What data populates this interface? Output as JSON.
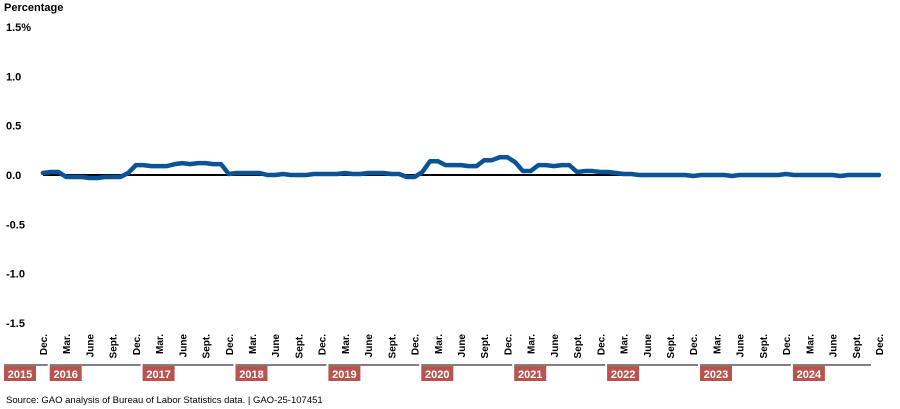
{
  "chart_data": {
    "type": "line",
    "ylabel": "Percentage",
    "ylim": [
      -1.5,
      1.5
    ],
    "y_ticks": [
      "1.5%",
      "1.0",
      "0.5",
      "0.0",
      "-0.5",
      "-1.0",
      "-1.5"
    ],
    "month_labels": [
      "Dec.",
      "Mar.",
      "June",
      "Sept.",
      "Dec.",
      "Mar.",
      "June",
      "Sept.",
      "Dec.",
      "Mar.",
      "June",
      "Sept.",
      "Dec.",
      "Mar.",
      "June",
      "Sept.",
      "Dec.",
      "Mar.",
      "June",
      "Sept.",
      "Dec.",
      "Mar.",
      "June",
      "Sept.",
      "Dec.",
      "Mar.",
      "June",
      "Sept.",
      "Dec.",
      "Mar.",
      "June",
      "Sept.",
      "Dec.",
      "Mar.",
      "June",
      "Sept.",
      "Dec."
    ],
    "years": [
      "2015",
      "2016",
      "2017",
      "2018",
      "2019",
      "2020",
      "2021",
      "2022",
      "2023",
      "2024"
    ],
    "grid": false,
    "zero_line": true,
    "series_color": "#0b5394",
    "year_box_color": "#b85450",
    "series": [
      {
        "name": "",
        "x_start": "2015-12",
        "x_end": "2024-12",
        "frequency": "monthly",
        "values": [
          0.02,
          0.03,
          0.03,
          -0.02,
          -0.02,
          -0.02,
          -0.03,
          -0.03,
          -0.02,
          -0.02,
          -0.02,
          0.02,
          0.1,
          0.1,
          0.09,
          0.09,
          0.09,
          0.11,
          0.12,
          0.11,
          0.12,
          0.12,
          0.11,
          0.11,
          0.01,
          0.02,
          0.02,
          0.02,
          0.02,
          0.0,
          0.0,
          0.01,
          0.0,
          0.0,
          0.0,
          0.01,
          0.01,
          0.01,
          0.01,
          0.02,
          0.01,
          0.01,
          0.02,
          0.02,
          0.02,
          0.01,
          0.01,
          -0.02,
          -0.02,
          0.03,
          0.14,
          0.14,
          0.1,
          0.1,
          0.1,
          0.09,
          0.09,
          0.15,
          0.15,
          0.18,
          0.18,
          0.13,
          0.04,
          0.04,
          0.1,
          0.1,
          0.09,
          0.1,
          0.1,
          0.03,
          0.04,
          0.04,
          0.03,
          0.03,
          0.02,
          0.01,
          0.01,
          0.0,
          0.0,
          0.0,
          0.0,
          0.0,
          0.0,
          0.0,
          -0.01,
          0.0,
          0.0,
          0.0,
          0.0,
          -0.01,
          0.0,
          0.0,
          0.0,
          0.0,
          0.0,
          0.0,
          0.01,
          0.0,
          0.0,
          0.0,
          0.0,
          0.0,
          0.0,
          -0.01,
          0.0,
          0.0,
          0.0,
          0.0,
          0.0
        ]
      }
    ]
  },
  "source": "Source: GAO analysis of Bureau of Labor Statistics data.  |  GAO-25-107451"
}
